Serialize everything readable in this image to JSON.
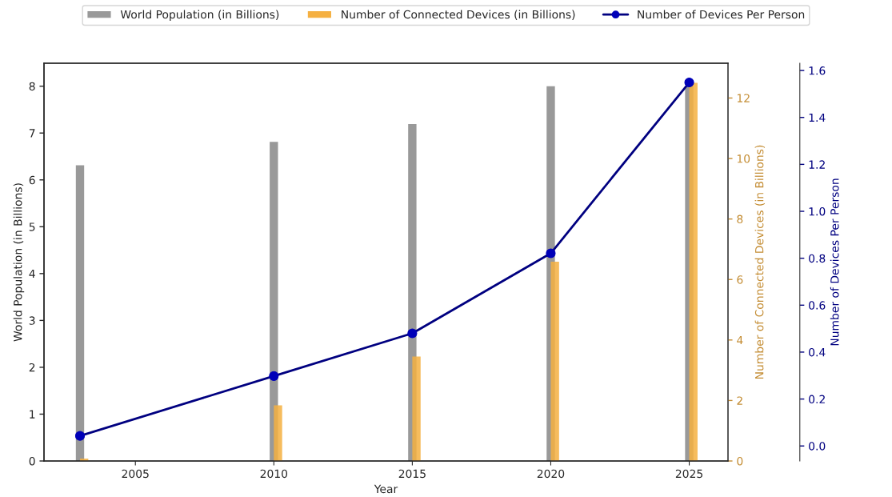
{
  "chart_data": {
    "type": "bar",
    "xlabel": "Year",
    "ylabel": "World Population (in Billions)",
    "y2label": "Number of Connected Devices (in Billions)",
    "y3label": "Number of Devices Per Person",
    "x": [
      2003,
      2010,
      2015,
      2020,
      2025
    ],
    "series": [
      {
        "name": "World Population (in Billions)",
        "axis": "y",
        "color": "#999999",
        "values": [
          6.31,
          6.81,
          7.19,
          8.0,
          8.0
        ]
      },
      {
        "name": "Number of Connected Devices (in Billions)",
        "axis": "y2",
        "color": "#f5b041",
        "values": [
          0.08,
          1.84,
          3.45,
          6.59,
          12.5
        ]
      },
      {
        "name": "Number of Devices Per Person",
        "type": "line",
        "axis": "y3",
        "color": "#000080",
        "marker": "circle",
        "line_style": "solid",
        "values": [
          0.043,
          0.298,
          0.48,
          0.821,
          1.549
        ]
      }
    ],
    "xlim": [
      2001.7,
      2026.4
    ],
    "xticks": [
      2005,
      2010,
      2015,
      2020,
      2025
    ],
    "ylim": [
      0,
      8.49
    ],
    "yticks": [
      0,
      1,
      2,
      3,
      4,
      5,
      6,
      7,
      8
    ],
    "y2lim": [
      0,
      13.15
    ],
    "y2ticks": [
      0,
      2,
      4,
      6,
      8,
      10,
      12
    ],
    "y3lim": [
      -0.064,
      1.631
    ],
    "y3ticks": [
      {
        "value": 0,
        "label": "0.0"
      },
      {
        "value": 0.2,
        "label": "0.2"
      },
      {
        "value": 0.4,
        "label": "0.4"
      },
      {
        "value": 0.6,
        "label": "0.6"
      },
      {
        "value": 0.8,
        "label": "0.8"
      },
      {
        "value": 1.0,
        "label": "1.0"
      },
      {
        "value": 1.2,
        "label": "1.2"
      },
      {
        "value": 1.4,
        "label": "1.4"
      },
      {
        "value": 1.6,
        "label": "1.6"
      }
    ],
    "grid": false,
    "legend": "top"
  }
}
